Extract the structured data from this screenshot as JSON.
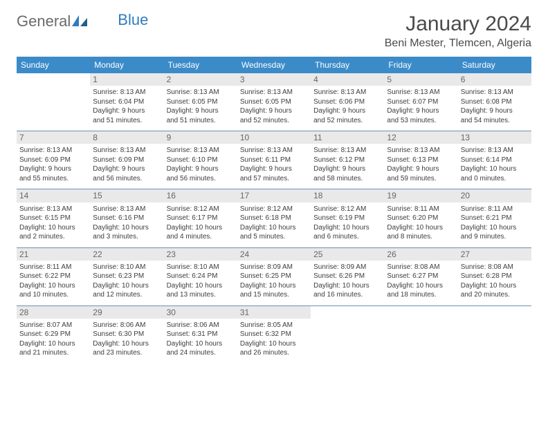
{
  "brand": {
    "part1": "General",
    "part2": "Blue"
  },
  "title": "January 2024",
  "location": "Beni Mester, Tlemcen, Algeria",
  "colors": {
    "header_bg": "#3b8bc9",
    "header_text": "#ffffff",
    "daynum_bg": "#e9e9e9",
    "daynum_text": "#666666",
    "divider": "#6b91b4",
    "body_text": "#3d3d3d",
    "logo_gray": "#6a6a6a",
    "logo_blue": "#2f7bbf"
  },
  "weekdays": [
    "Sunday",
    "Monday",
    "Tuesday",
    "Wednesday",
    "Thursday",
    "Friday",
    "Saturday"
  ],
  "weeks": [
    [
      {
        "n": "",
        "empty": true
      },
      {
        "n": "1",
        "sr": "Sunrise: 8:13 AM",
        "ss": "Sunset: 6:04 PM",
        "d1": "Daylight: 9 hours",
        "d2": "and 51 minutes."
      },
      {
        "n": "2",
        "sr": "Sunrise: 8:13 AM",
        "ss": "Sunset: 6:05 PM",
        "d1": "Daylight: 9 hours",
        "d2": "and 51 minutes."
      },
      {
        "n": "3",
        "sr": "Sunrise: 8:13 AM",
        "ss": "Sunset: 6:05 PM",
        "d1": "Daylight: 9 hours",
        "d2": "and 52 minutes."
      },
      {
        "n": "4",
        "sr": "Sunrise: 8:13 AM",
        "ss": "Sunset: 6:06 PM",
        "d1": "Daylight: 9 hours",
        "d2": "and 52 minutes."
      },
      {
        "n": "5",
        "sr": "Sunrise: 8:13 AM",
        "ss": "Sunset: 6:07 PM",
        "d1": "Daylight: 9 hours",
        "d2": "and 53 minutes."
      },
      {
        "n": "6",
        "sr": "Sunrise: 8:13 AM",
        "ss": "Sunset: 6:08 PM",
        "d1": "Daylight: 9 hours",
        "d2": "and 54 minutes."
      }
    ],
    [
      {
        "n": "7",
        "sr": "Sunrise: 8:13 AM",
        "ss": "Sunset: 6:09 PM",
        "d1": "Daylight: 9 hours",
        "d2": "and 55 minutes."
      },
      {
        "n": "8",
        "sr": "Sunrise: 8:13 AM",
        "ss": "Sunset: 6:09 PM",
        "d1": "Daylight: 9 hours",
        "d2": "and 56 minutes."
      },
      {
        "n": "9",
        "sr": "Sunrise: 8:13 AM",
        "ss": "Sunset: 6:10 PM",
        "d1": "Daylight: 9 hours",
        "d2": "and 56 minutes."
      },
      {
        "n": "10",
        "sr": "Sunrise: 8:13 AM",
        "ss": "Sunset: 6:11 PM",
        "d1": "Daylight: 9 hours",
        "d2": "and 57 minutes."
      },
      {
        "n": "11",
        "sr": "Sunrise: 8:13 AM",
        "ss": "Sunset: 6:12 PM",
        "d1": "Daylight: 9 hours",
        "d2": "and 58 minutes."
      },
      {
        "n": "12",
        "sr": "Sunrise: 8:13 AM",
        "ss": "Sunset: 6:13 PM",
        "d1": "Daylight: 9 hours",
        "d2": "and 59 minutes."
      },
      {
        "n": "13",
        "sr": "Sunrise: 8:13 AM",
        "ss": "Sunset: 6:14 PM",
        "d1": "Daylight: 10 hours",
        "d2": "and 0 minutes."
      }
    ],
    [
      {
        "n": "14",
        "sr": "Sunrise: 8:13 AM",
        "ss": "Sunset: 6:15 PM",
        "d1": "Daylight: 10 hours",
        "d2": "and 2 minutes."
      },
      {
        "n": "15",
        "sr": "Sunrise: 8:13 AM",
        "ss": "Sunset: 6:16 PM",
        "d1": "Daylight: 10 hours",
        "d2": "and 3 minutes."
      },
      {
        "n": "16",
        "sr": "Sunrise: 8:12 AM",
        "ss": "Sunset: 6:17 PM",
        "d1": "Daylight: 10 hours",
        "d2": "and 4 minutes."
      },
      {
        "n": "17",
        "sr": "Sunrise: 8:12 AM",
        "ss": "Sunset: 6:18 PM",
        "d1": "Daylight: 10 hours",
        "d2": "and 5 minutes."
      },
      {
        "n": "18",
        "sr": "Sunrise: 8:12 AM",
        "ss": "Sunset: 6:19 PM",
        "d1": "Daylight: 10 hours",
        "d2": "and 6 minutes."
      },
      {
        "n": "19",
        "sr": "Sunrise: 8:11 AM",
        "ss": "Sunset: 6:20 PM",
        "d1": "Daylight: 10 hours",
        "d2": "and 8 minutes."
      },
      {
        "n": "20",
        "sr": "Sunrise: 8:11 AM",
        "ss": "Sunset: 6:21 PM",
        "d1": "Daylight: 10 hours",
        "d2": "and 9 minutes."
      }
    ],
    [
      {
        "n": "21",
        "sr": "Sunrise: 8:11 AM",
        "ss": "Sunset: 6:22 PM",
        "d1": "Daylight: 10 hours",
        "d2": "and 10 minutes."
      },
      {
        "n": "22",
        "sr": "Sunrise: 8:10 AM",
        "ss": "Sunset: 6:23 PM",
        "d1": "Daylight: 10 hours",
        "d2": "and 12 minutes."
      },
      {
        "n": "23",
        "sr": "Sunrise: 8:10 AM",
        "ss": "Sunset: 6:24 PM",
        "d1": "Daylight: 10 hours",
        "d2": "and 13 minutes."
      },
      {
        "n": "24",
        "sr": "Sunrise: 8:09 AM",
        "ss": "Sunset: 6:25 PM",
        "d1": "Daylight: 10 hours",
        "d2": "and 15 minutes."
      },
      {
        "n": "25",
        "sr": "Sunrise: 8:09 AM",
        "ss": "Sunset: 6:26 PM",
        "d1": "Daylight: 10 hours",
        "d2": "and 16 minutes."
      },
      {
        "n": "26",
        "sr": "Sunrise: 8:08 AM",
        "ss": "Sunset: 6:27 PM",
        "d1": "Daylight: 10 hours",
        "d2": "and 18 minutes."
      },
      {
        "n": "27",
        "sr": "Sunrise: 8:08 AM",
        "ss": "Sunset: 6:28 PM",
        "d1": "Daylight: 10 hours",
        "d2": "and 20 minutes."
      }
    ],
    [
      {
        "n": "28",
        "sr": "Sunrise: 8:07 AM",
        "ss": "Sunset: 6:29 PM",
        "d1": "Daylight: 10 hours",
        "d2": "and 21 minutes."
      },
      {
        "n": "29",
        "sr": "Sunrise: 8:06 AM",
        "ss": "Sunset: 6:30 PM",
        "d1": "Daylight: 10 hours",
        "d2": "and 23 minutes."
      },
      {
        "n": "30",
        "sr": "Sunrise: 8:06 AM",
        "ss": "Sunset: 6:31 PM",
        "d1": "Daylight: 10 hours",
        "d2": "and 24 minutes."
      },
      {
        "n": "31",
        "sr": "Sunrise: 8:05 AM",
        "ss": "Sunset: 6:32 PM",
        "d1": "Daylight: 10 hours",
        "d2": "and 26 minutes."
      },
      {
        "n": "",
        "empty": true
      },
      {
        "n": "",
        "empty": true
      },
      {
        "n": "",
        "empty": true
      }
    ]
  ]
}
